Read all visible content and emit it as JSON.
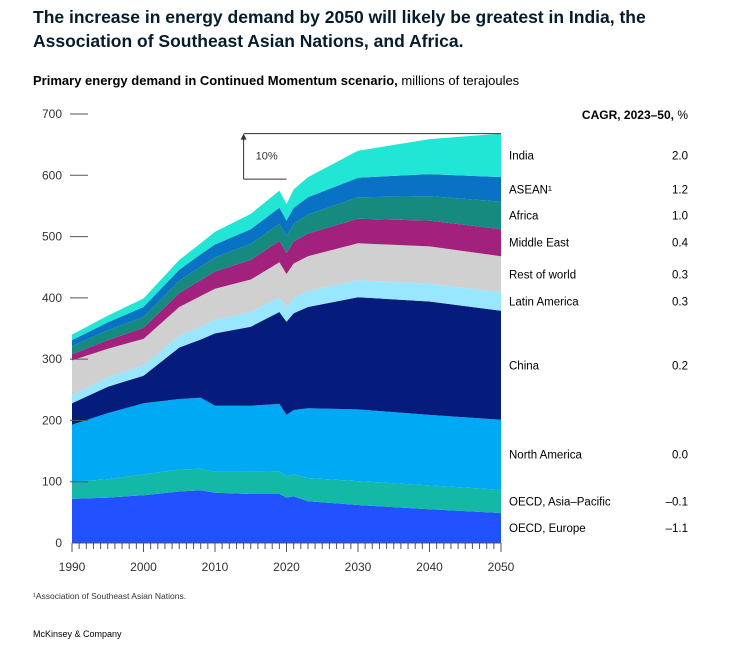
{
  "headline": "The increase in energy demand by 2050 will likely be greatest in India, the Association of Southeast Asian Nations, and Africa.",
  "subtitle_bold": "Primary energy demand in Continued Momentum scenario,",
  "subtitle_unit": " millions of terajoules",
  "footnote": "¹Association of Southeast Asian Nations.",
  "brand": "McKinsey & Company",
  "chart_data": {
    "type": "area",
    "stacked": true,
    "ylim": [
      0,
      700
    ],
    "xlim": [
      1990,
      2050
    ],
    "y_ticks": [
      0,
      100,
      200,
      300,
      400,
      500,
      600,
      700
    ],
    "x_ticks": [
      1990,
      2000,
      2010,
      2020,
      2030,
      2040,
      2050
    ],
    "cagr_header_bold": "CAGR, 2023–50,",
    "cagr_header_unit": " %",
    "annotation": "10%",
    "annotation_span": [
      2014,
      2050
    ],
    "x": [
      1990,
      1995,
      2000,
      2005,
      2008,
      2010,
      2015,
      2019,
      2020,
      2021,
      2023,
      2030,
      2040,
      2050
    ],
    "series": [
      {
        "name": "OECD, Europe",
        "cagr": "–1.1",
        "color": "#2251ff",
        "values": [
          72,
          74,
          78,
          84,
          86,
          82,
          80,
          80,
          74,
          76,
          68,
          62,
          55,
          49
        ]
      },
      {
        "name": "OECD, Asia–Pacific",
        "cagr": "–0.1",
        "color": "#14b8a6",
        "values": [
          28,
          30,
          34,
          36,
          35,
          34,
          36,
          37,
          35,
          36,
          38,
          39,
          39,
          38
        ]
      },
      {
        "name": "North America",
        "cagr": "0.0",
        "color": "#00a9f4",
        "values": [
          93,
          108,
          116,
          115,
          116,
          108,
          108,
          110,
          100,
          105,
          114,
          117,
          115,
          114
        ]
      },
      {
        "name": "China",
        "cagr": "0.2",
        "color": "#051c7c",
        "values": [
          35,
          43,
          45,
          84,
          95,
          118,
          129,
          150,
          152,
          158,
          165,
          183,
          185,
          178
        ]
      },
      {
        "name": "Latin America",
        "cagr": "0.3",
        "color": "#99e6ff",
        "values": [
          13,
          15,
          17,
          19,
          21,
          22,
          24,
          24,
          23,
          25,
          26,
          28,
          29,
          30
        ]
      },
      {
        "name": "Rest of world",
        "cagr": "0.3",
        "color": "#d0d0d0",
        "values": [
          57,
          47,
          43,
          47,
          50,
          51,
          53,
          57,
          55,
          56,
          57,
          60,
          61,
          59
        ]
      },
      {
        "name": "Middle East",
        "cagr": "0.4",
        "color": "#a2217c",
        "values": [
          10,
          14,
          18,
          23,
          26,
          28,
          32,
          35,
          34,
          36,
          37,
          40,
          42,
          44
        ]
      },
      {
        "name": "Africa",
        "cagr": "1.0",
        "color": "#178a7f",
        "values": [
          13,
          16,
          18,
          20,
          22,
          23,
          26,
          28,
          28,
          29,
          31,
          35,
          40,
          45
        ]
      },
      {
        "name": "ASEAN¹",
        "cagr": "1.2",
        "color": "#0a72c4",
        "values": [
          10,
          13,
          16,
          18,
          20,
          21,
          24,
          26,
          25,
          26,
          28,
          32,
          36,
          40
        ]
      },
      {
        "name": "India",
        "cagr": "2.0",
        "color": "#22e6d5",
        "values": [
          9,
          11,
          14,
          16,
          18,
          21,
          25,
          28,
          27,
          30,
          33,
          44,
          57,
          71
        ]
      }
    ]
  }
}
